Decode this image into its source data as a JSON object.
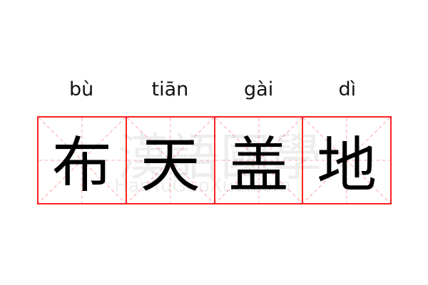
{
  "idiom": {
    "characters": [
      "布",
      "天",
      "盖",
      "地"
    ],
    "pinyin": [
      "bù",
      "tiān",
      "gài",
      "dì"
    ]
  },
  "watermark": {
    "chinese": "漢語國學",
    "latin": "HanYuGuoXue.com"
  },
  "colors": {
    "grid_border": "#ff2222",
    "guide_lines": "#ffaaaa",
    "text": "#000000"
  }
}
